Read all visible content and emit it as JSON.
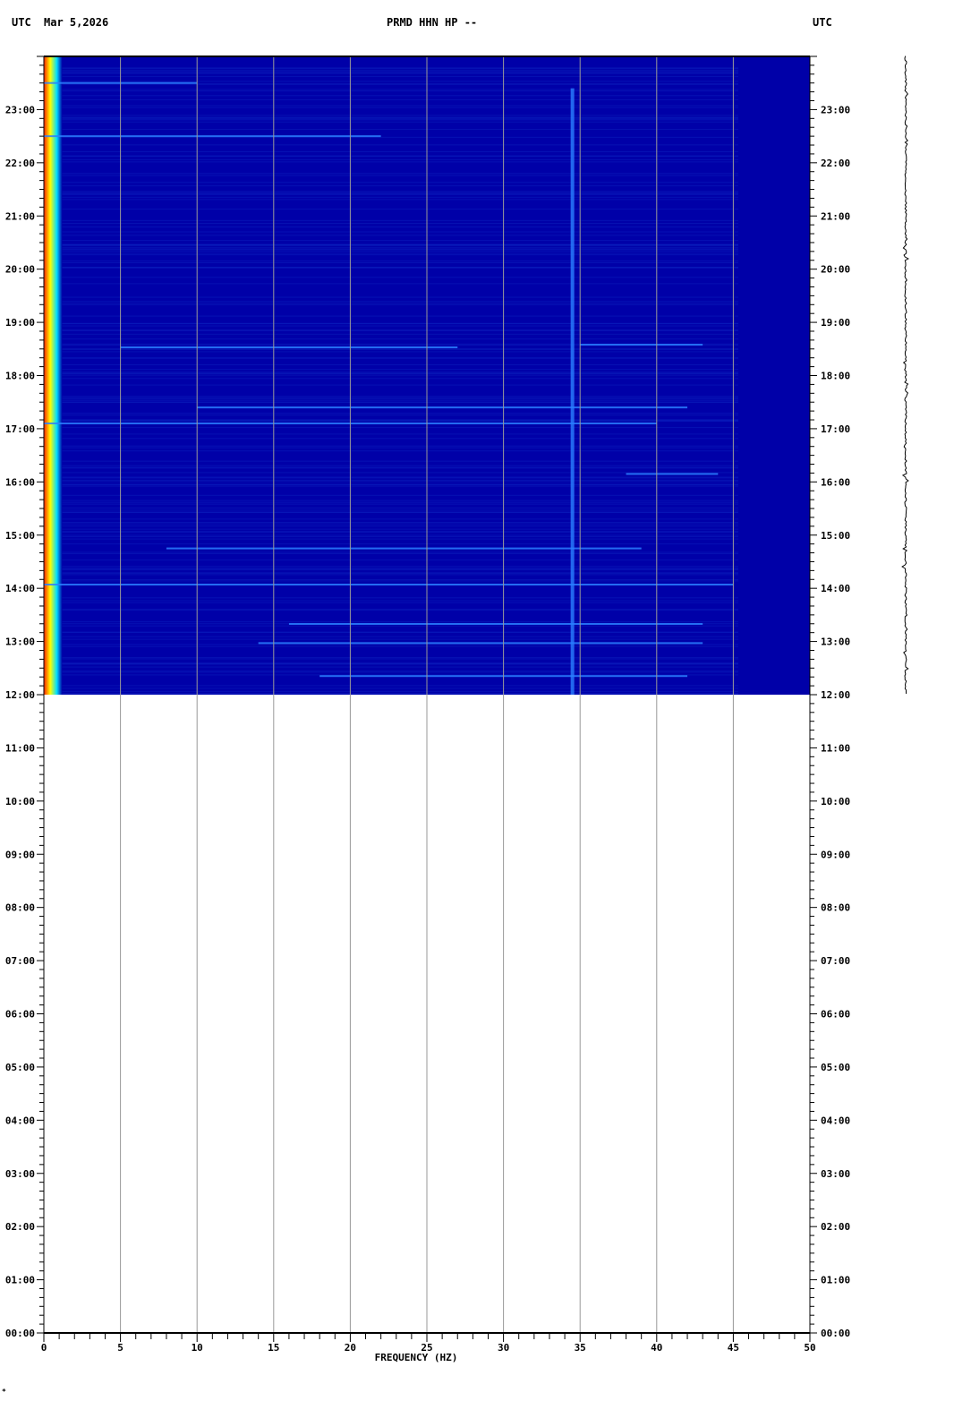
{
  "header": {
    "left_tz": "UTC",
    "date": "Mar 5,2026",
    "station": "PRMD HHN HP --",
    "right_tz": "UTC"
  },
  "footer_mark": "*",
  "chart_data": {
    "type": "heatmap",
    "title": "PRMD HHN HP --",
    "xlabel": "FREQUENCY (HZ)",
    "ylabel": "",
    "xlim": [
      0,
      50
    ],
    "ylim_hours_utc": [
      0,
      24
    ],
    "x_ticks": [
      0,
      5,
      10,
      15,
      20,
      25,
      30,
      35,
      40,
      45,
      50
    ],
    "y_ticks": [
      "00:00",
      "01:00",
      "02:00",
      "03:00",
      "04:00",
      "05:00",
      "06:00",
      "07:00",
      "08:00",
      "09:00",
      "10:00",
      "11:00",
      "12:00",
      "13:00",
      "14:00",
      "15:00",
      "16:00",
      "17:00",
      "18:00",
      "19:00",
      "20:00",
      "21:00",
      "22:00",
      "23:00"
    ],
    "grid": "vertical lines every 5 Hz",
    "data_coverage_hours": [
      12,
      24
    ],
    "colors": {
      "background": "#0000a8",
      "low_freq_band": "#ff2000",
      "mid": "#ffff00",
      "streak": "#2a7fff"
    },
    "features": [
      {
        "kind": "low-frequency energy band",
        "freq_hz": [
          0,
          0.6
        ],
        "hours": [
          12,
          24
        ]
      },
      {
        "kind": "narrowband line",
        "freq_hz": 34.5,
        "hours": [
          12.0,
          23.4
        ]
      },
      {
        "kind": "broadband streak",
        "hour": 23.5,
        "freq_hz": [
          0,
          10
        ]
      },
      {
        "kind": "broadband streak",
        "hour": 22.5,
        "freq_hz": [
          0,
          22
        ]
      },
      {
        "kind": "broadband streak",
        "hour": 18.53,
        "freq_hz": [
          5,
          27
        ]
      },
      {
        "kind": "broadband streak",
        "hour": 18.58,
        "freq_hz": [
          35,
          43
        ]
      },
      {
        "kind": "broadband streak",
        "hour": 17.4,
        "freq_hz": [
          10,
          42
        ]
      },
      {
        "kind": "broadband streak",
        "hour": 17.1,
        "freq_hz": [
          0,
          40
        ]
      },
      {
        "kind": "broadband streak",
        "hour": 14.07,
        "freq_hz": [
          0,
          45
        ]
      },
      {
        "kind": "broadband streak",
        "hour": 13.33,
        "freq_hz": [
          16,
          43
        ]
      },
      {
        "kind": "broadband streak",
        "hour": 12.97,
        "freq_hz": [
          14,
          43
        ]
      },
      {
        "kind": "broadband streak",
        "hour": 12.35,
        "freq_hz": [
          18,
          42
        ]
      },
      {
        "kind": "broadband streak",
        "hour": 14.75,
        "freq_hz": [
          8,
          39
        ]
      },
      {
        "kind": "broadband streak",
        "hour": 16.15,
        "freq_hz": [
          38,
          44
        ]
      }
    ]
  }
}
